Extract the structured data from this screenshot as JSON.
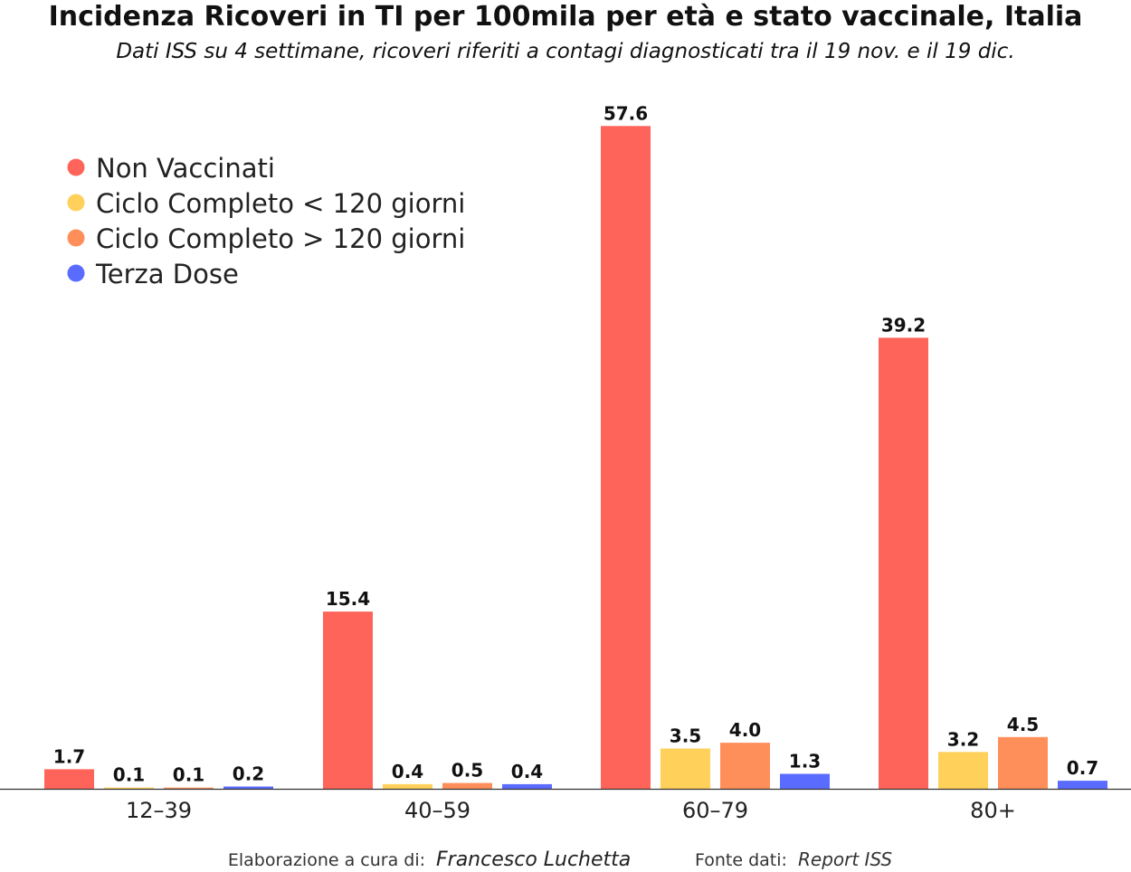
{
  "chart_data": {
    "type": "bar",
    "title": "Incidenza Ricoveri in TI per 100mila per età e stato vaccinale, Italia",
    "subtitle": "Dati ISS su 4 settimane, ricoveri riferiti a contagi diagnosticati tra il 19 nov. e il 19 dic.",
    "xlabel": "",
    "ylabel": "",
    "ylim": [
      0,
      62
    ],
    "grid": false,
    "legend_position": "top-left",
    "categories": [
      "12–39",
      "40–59",
      "60–79",
      "80+"
    ],
    "series": [
      {
        "name": "Non Vaccinati",
        "color": "#ff645a",
        "values": [
          1.7,
          15.4,
          57.6,
          39.2
        ],
        "labels": [
          "1.7",
          "15.4",
          "57.6",
          "39.2"
        ]
      },
      {
        "name": "Ciclo Completo < 120 giorni",
        "color": "#ffd05a",
        "values": [
          0.1,
          0.4,
          3.5,
          3.2
        ],
        "labels": [
          "0.1",
          "0.4",
          "3.5",
          "3.2"
        ]
      },
      {
        "name": "Ciclo Completo > 120 giorni",
        "color": "#ff8f5a",
        "values": [
          0.1,
          0.5,
          4.0,
          4.5
        ],
        "labels": [
          "0.1",
          "0.5",
          "4.0",
          "4.5"
        ]
      },
      {
        "name": "Terza Dose",
        "color": "#5a6bff",
        "values": [
          0.2,
          0.4,
          1.3,
          0.7
        ],
        "labels": [
          "0.2",
          "0.4",
          "1.3",
          "0.7"
        ]
      }
    ]
  },
  "footer": {
    "credit_label": "Elaborazione a cura di:",
    "credit_name": "Francesco Luchetta",
    "source_label": "Fonte dati:",
    "source_name": "Report ISS"
  }
}
